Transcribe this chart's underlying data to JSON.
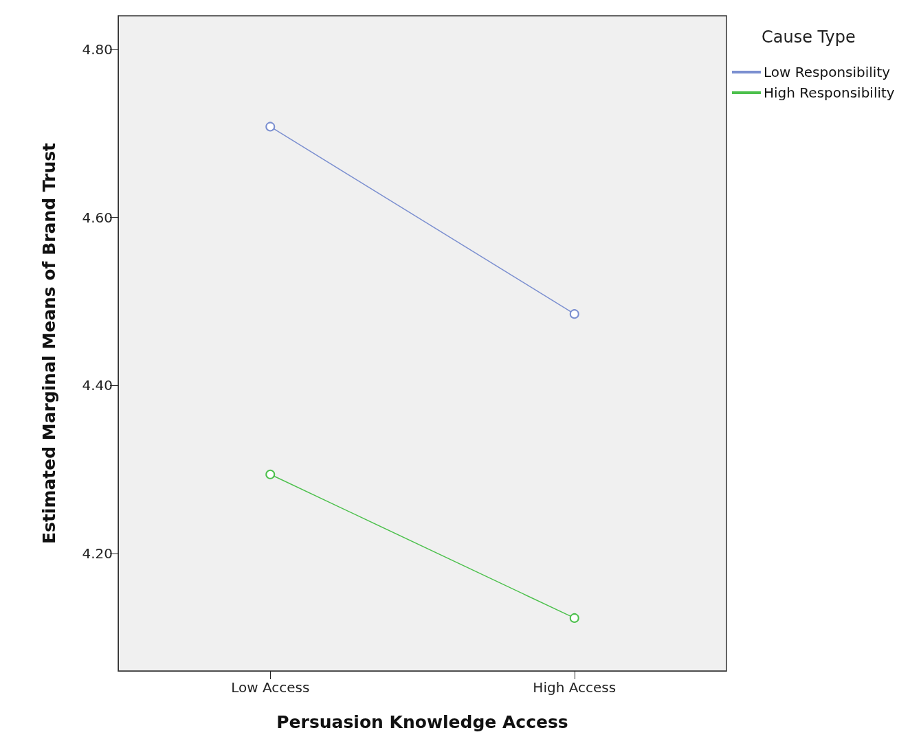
{
  "chart_data": {
    "type": "line",
    "xlabel": "Persuasion Knowledge Access",
    "ylabel": "Estimated Marginal Means of Brand Trust",
    "legend_title": "Cause Type",
    "categories": [
      "Low Access",
      "High Access"
    ],
    "series": [
      {
        "name": "Low Responsibility",
        "color": "#7b8fd0",
        "values": [
          4.708,
          4.485
        ]
      },
      {
        "name": "High Responsibility",
        "color": "#4cc04c",
        "values": [
          4.294,
          4.123
        ]
      }
    ],
    "ylim": [
      4.06,
      4.84
    ],
    "yticks": [
      {
        "value": 4.2,
        "label": "4.20"
      },
      {
        "value": 4.4,
        "label": "4.40"
      },
      {
        "value": 4.6,
        "label": "4.60"
      },
      {
        "value": 4.8,
        "label": "4.80"
      }
    ],
    "marker": "circle",
    "legend": "top right"
  }
}
